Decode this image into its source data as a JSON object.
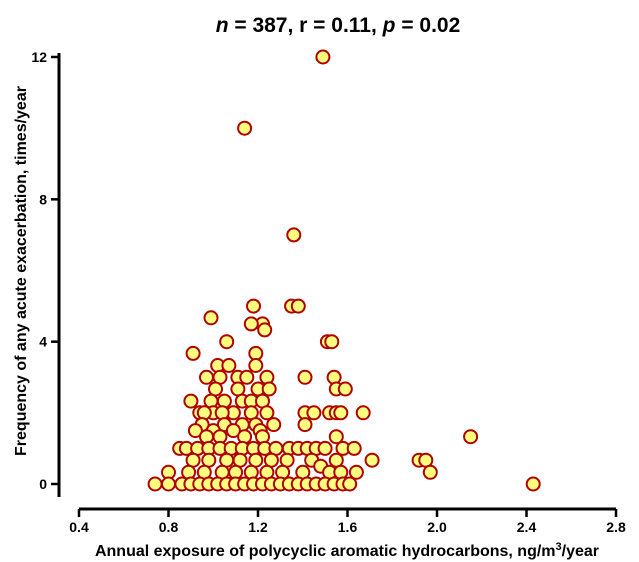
{
  "chart_data": {
    "type": "scatter",
    "title": {
      "n_symbol": "n",
      "n_value": " = 387, r = 0.11, ",
      "p_symbol": "p",
      "p_value": " = 0.02"
    },
    "xlabel": {
      "main": "Annual exposure of polycyclic aromatic hydrocarbons, ng/m",
      "superscript": "3",
      "tail": "/year"
    },
    "ylabel": "Frequency of any acute exacerbation, times/year",
    "xlim": [
      0.4,
      2.8
    ],
    "ylim": [
      0,
      12
    ],
    "x_ticks": [
      {
        "value": 0.4,
        "label": "0.4"
      },
      {
        "value": 0.8,
        "label": "0.8"
      },
      {
        "value": 1.2,
        "label": "1.2"
      },
      {
        "value": 1.6,
        "label": "1.6"
      },
      {
        "value": 2.0,
        "label": "2.0"
      },
      {
        "value": 2.4,
        "label": "2.4"
      },
      {
        "value": 2.8,
        "label": "2.8"
      }
    ],
    "y_ticks": [
      {
        "value": 0,
        "label": "0"
      },
      {
        "value": 4,
        "label": "4"
      },
      {
        "value": 8,
        "label": "8"
      },
      {
        "value": 12,
        "label": "12"
      }
    ],
    "grid": false,
    "marker": {
      "fill": "#ffff80",
      "stroke": "#b00000"
    },
    "points": [
      [
        1.49,
        12.0
      ],
      [
        1.14,
        10.0
      ],
      [
        1.36,
        7.0
      ],
      [
        1.18,
        5.0
      ],
      [
        1.35,
        5.0
      ],
      [
        1.38,
        5.0
      ],
      [
        0.99,
        4.67
      ],
      [
        1.22,
        4.5
      ],
      [
        1.17,
        4.5
      ],
      [
        1.23,
        4.33
      ],
      [
        1.06,
        4.0
      ],
      [
        1.51,
        4.0
      ],
      [
        1.53,
        4.0
      ],
      [
        0.91,
        3.67
      ],
      [
        1.19,
        3.67
      ],
      [
        1.02,
        3.33
      ],
      [
        1.07,
        3.33
      ],
      [
        1.19,
        3.33
      ],
      [
        1.54,
        3.0
      ],
      [
        1.41,
        3.0
      ],
      [
        0.97,
        3.0
      ],
      [
        1.11,
        3.0
      ],
      [
        1.15,
        3.0
      ],
      [
        1.24,
        3.0
      ],
      [
        1.03,
        3.0
      ],
      [
        1.55,
        2.67
      ],
      [
        1.59,
        2.67
      ],
      [
        1.01,
        2.67
      ],
      [
        1.11,
        2.67
      ],
      [
        1.2,
        2.67
      ],
      [
        1.25,
        2.67
      ],
      [
        0.9,
        2.33
      ],
      [
        0.99,
        2.33
      ],
      [
        1.05,
        2.33
      ],
      [
        1.13,
        2.33
      ],
      [
        1.17,
        2.33
      ],
      [
        1.22,
        2.33
      ],
      [
        0.94,
        2.0
      ],
      [
        1.0,
        2.0
      ],
      [
        1.09,
        2.0
      ],
      [
        1.17,
        2.0
      ],
      [
        1.24,
        2.0
      ],
      [
        1.41,
        2.0
      ],
      [
        1.45,
        2.0
      ],
      [
        1.52,
        2.0
      ],
      [
        1.55,
        2.0
      ],
      [
        1.57,
        2.0
      ],
      [
        1.67,
        2.0
      ],
      [
        0.96,
        2.0
      ],
      [
        1.04,
        2.0
      ],
      [
        1.41,
        1.67
      ],
      [
        0.95,
        1.67
      ],
      [
        1.05,
        1.67
      ],
      [
        1.13,
        1.67
      ],
      [
        1.19,
        1.67
      ],
      [
        1.27,
        1.67
      ],
      [
        0.92,
        1.5
      ],
      [
        1.0,
        1.5
      ],
      [
        1.09,
        1.5
      ],
      [
        1.21,
        1.5
      ],
      [
        1.55,
        1.33
      ],
      [
        2.15,
        1.33
      ],
      [
        0.97,
        1.33
      ],
      [
        1.03,
        1.33
      ],
      [
        1.14,
        1.33
      ],
      [
        1.22,
        1.33
      ],
      [
        0.85,
        1.0
      ],
      [
        0.88,
        1.0
      ],
      [
        0.93,
        1.0
      ],
      [
        0.98,
        1.0
      ],
      [
        1.03,
        1.0
      ],
      [
        1.08,
        1.0
      ],
      [
        1.13,
        1.0
      ],
      [
        1.18,
        1.0
      ],
      [
        1.23,
        1.0
      ],
      [
        1.28,
        1.0
      ],
      [
        1.34,
        1.0
      ],
      [
        1.38,
        1.0
      ],
      [
        1.42,
        1.0
      ],
      [
        1.46,
        1.0
      ],
      [
        1.5,
        1.0
      ],
      [
        1.58,
        1.0
      ],
      [
        1.63,
        1.0
      ],
      [
        1.71,
        0.67
      ],
      [
        1.92,
        0.67
      ],
      [
        1.95,
        0.67
      ],
      [
        0.91,
        0.67
      ],
      [
        0.98,
        0.67
      ],
      [
        1.06,
        0.67
      ],
      [
        1.12,
        0.67
      ],
      [
        1.19,
        0.67
      ],
      [
        1.26,
        0.67
      ],
      [
        1.33,
        0.67
      ],
      [
        1.44,
        0.67
      ],
      [
        1.55,
        0.67
      ],
      [
        1.48,
        0.5
      ],
      [
        0.8,
        0.33
      ],
      [
        0.89,
        0.33
      ],
      [
        0.96,
        0.33
      ],
      [
        1.04,
        0.33
      ],
      [
        1.1,
        0.33
      ],
      [
        1.17,
        0.33
      ],
      [
        1.24,
        0.33
      ],
      [
        1.31,
        0.33
      ],
      [
        1.4,
        0.33
      ],
      [
        1.52,
        0.33
      ],
      [
        1.57,
        0.33
      ],
      [
        1.64,
        0.33
      ],
      [
        1.97,
        0.33
      ],
      [
        0.74,
        0.0
      ],
      [
        0.8,
        0.0
      ],
      [
        0.86,
        0.0
      ],
      [
        0.9,
        0.0
      ],
      [
        0.94,
        0.0
      ],
      [
        0.98,
        0.0
      ],
      [
        1.02,
        0.0
      ],
      [
        1.06,
        0.0
      ],
      [
        1.1,
        0.0
      ],
      [
        1.14,
        0.0
      ],
      [
        1.18,
        0.0
      ],
      [
        1.22,
        0.0
      ],
      [
        1.26,
        0.0
      ],
      [
        1.3,
        0.0
      ],
      [
        1.34,
        0.0
      ],
      [
        1.38,
        0.0
      ],
      [
        1.42,
        0.0
      ],
      [
        1.46,
        0.0
      ],
      [
        1.5,
        0.0
      ],
      [
        1.54,
        0.0
      ],
      [
        1.58,
        0.0
      ],
      [
        1.61,
        0.0
      ],
      [
        2.43,
        0.0
      ]
    ]
  }
}
